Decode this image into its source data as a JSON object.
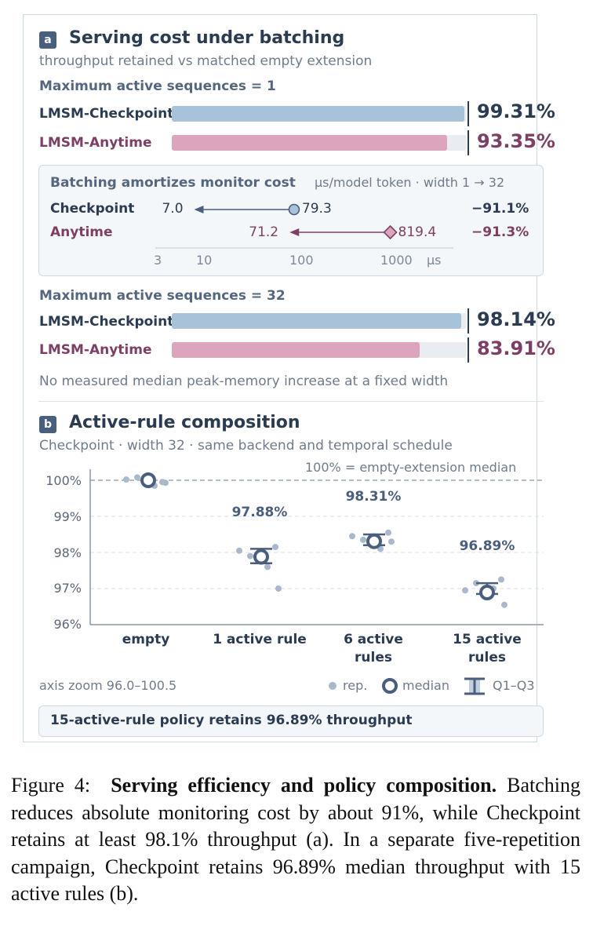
{
  "panel_a": {
    "badge": "a",
    "title": "Serving cost under batching",
    "subtitle": "throughput retained vs matched empty extension",
    "group1_label": "Maximum active sequences = 1",
    "group2_label": "Maximum active sequences = 32",
    "footnote": "No measured median peak-memory increase at a fixed width",
    "inset": {
      "title": "Batching amortizes monitor cost",
      "note": "μs/model token · width 1 → 32",
      "rows": [
        {
          "label": "Checkpoint",
          "from_label": "79.3",
          "to_label": "7.0",
          "change": "−91.1%"
        },
        {
          "label": "Anytime",
          "from_label": "819.4",
          "to_label": "71.2",
          "change": "−91.3%"
        }
      ],
      "axis_ticks": [
        "3",
        "10",
        "100",
        "1000",
        "μs"
      ]
    }
  },
  "panel_b": {
    "badge": "b",
    "title": "Active-rule composition",
    "subtitle": "Checkpoint · width 32 · same backend and temporal schedule",
    "ref_label": "100% = empty-extension median",
    "y_ticks": [
      "100%",
      "99%",
      "98%",
      "97%",
      "96%"
    ],
    "median_labels": [
      "",
      "97.88%",
      "98.31%",
      "96.89%"
    ],
    "axis_note": "axis zoom 96.0–100.5",
    "legend": {
      "rep": "rep.",
      "median": "median",
      "iqr": "Q1–Q3"
    },
    "callout": "15-active-rule policy retains 96.89% throughput"
  },
  "caption": {
    "prefix": "Figure 4:",
    "bold": "Serving efficiency and policy composition.",
    "text": "Batching reduces absolute monitoring cost by about 91%, while Checkpoint retains at least 98.1% throughput (a). In a separate five-repetition campaign, Checkpoint retains 96.89% median throughput with 15 active rules (b)."
  },
  "colors": {
    "checkpoint": "#4a5e7d",
    "anytime": "#7d3f63",
    "checkpoint_bar": "#a7c2d9",
    "anytime_bar": "#dda5bd"
  },
  "chart_data": [
    {
      "type": "bar",
      "orientation": "horizontal",
      "title": "Maximum active sequences = 1",
      "categories": [
        "LMSM-Checkpoint",
        "LMSM-Anytime"
      ],
      "values": [
        99.31,
        93.35
      ],
      "value_labels": [
        "99.31%",
        "93.35%"
      ],
      "xlim": [
        0,
        100
      ]
    },
    {
      "type": "bar",
      "orientation": "horizontal",
      "title": "Maximum active sequences = 32",
      "categories": [
        "LMSM-Checkpoint",
        "LMSM-Anytime"
      ],
      "values": [
        98.14,
        83.91
      ],
      "value_labels": [
        "98.14%",
        "83.91%"
      ],
      "xlim": [
        0,
        100
      ]
    },
    {
      "type": "scatter",
      "title": "Batching amortizes monitor cost",
      "x_scale": "log",
      "xlim": [
        3,
        1500
      ],
      "series": [
        {
          "name": "Checkpoint",
          "width1": 79.3,
          "width32": 7.0,
          "change": "−91.1%"
        },
        {
          "name": "Anytime",
          "width1": 819.4,
          "width32": 71.2,
          "change": "−91.3%"
        }
      ]
    },
    {
      "type": "scatter",
      "title": "Active-rule composition",
      "categories": [
        "empty",
        "1 active rule",
        "6 active rules",
        "15 active rules"
      ],
      "ylim": [
        96.0,
        100.5
      ],
      "reference_y": 100,
      "grid": true,
      "medians": [
        100.0,
        97.88,
        98.31,
        96.89
      ],
      "q1": [
        100.0,
        97.7,
        98.2,
        96.85
      ],
      "q3": [
        100.0,
        98.1,
        98.5,
        97.15
      ],
      "reps": [
        [
          100.02,
          100.08,
          99.95,
          99.85,
          99.93
        ],
        [
          98.05,
          97.9,
          98.15,
          97.6,
          97.0
        ],
        [
          98.45,
          98.35,
          98.55,
          98.1,
          98.3
        ],
        [
          96.95,
          97.15,
          97.25,
          97.0,
          96.55
        ]
      ]
    }
  ]
}
